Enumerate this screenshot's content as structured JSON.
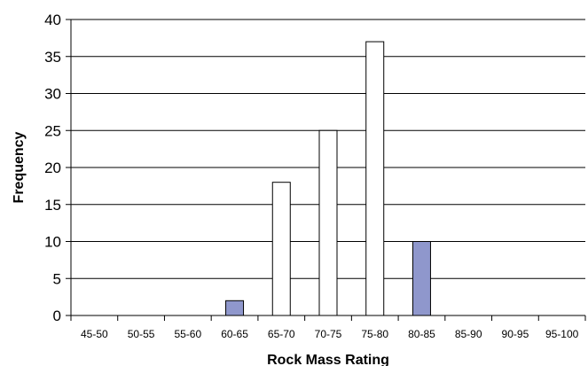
{
  "chart_data": {
    "type": "bar",
    "title": "",
    "xlabel": "Rock Mass Rating",
    "ylabel": "Frequency",
    "ylim": [
      0,
      40
    ],
    "yticks": [
      0,
      5,
      10,
      15,
      20,
      25,
      30,
      35,
      40
    ],
    "categories": [
      "45-50",
      "50-55",
      "55-60",
      "60-65",
      "65-70",
      "70-75",
      "75-80",
      "80-85",
      "85-90",
      "90-95",
      "95-100"
    ],
    "values": [
      0,
      0,
      0,
      2,
      18,
      25,
      37,
      10,
      0,
      0,
      0
    ],
    "bar_style": [
      "none",
      "none",
      "none",
      "filled",
      "hollow",
      "hollow",
      "hollow",
      "filled",
      "none",
      "none",
      "none"
    ],
    "grid": "horizontal",
    "legend": "none",
    "colors": {
      "filled": "#8f97cc",
      "hollow": "#ffffff",
      "stroke": "#000000",
      "grid": "#000000"
    }
  }
}
